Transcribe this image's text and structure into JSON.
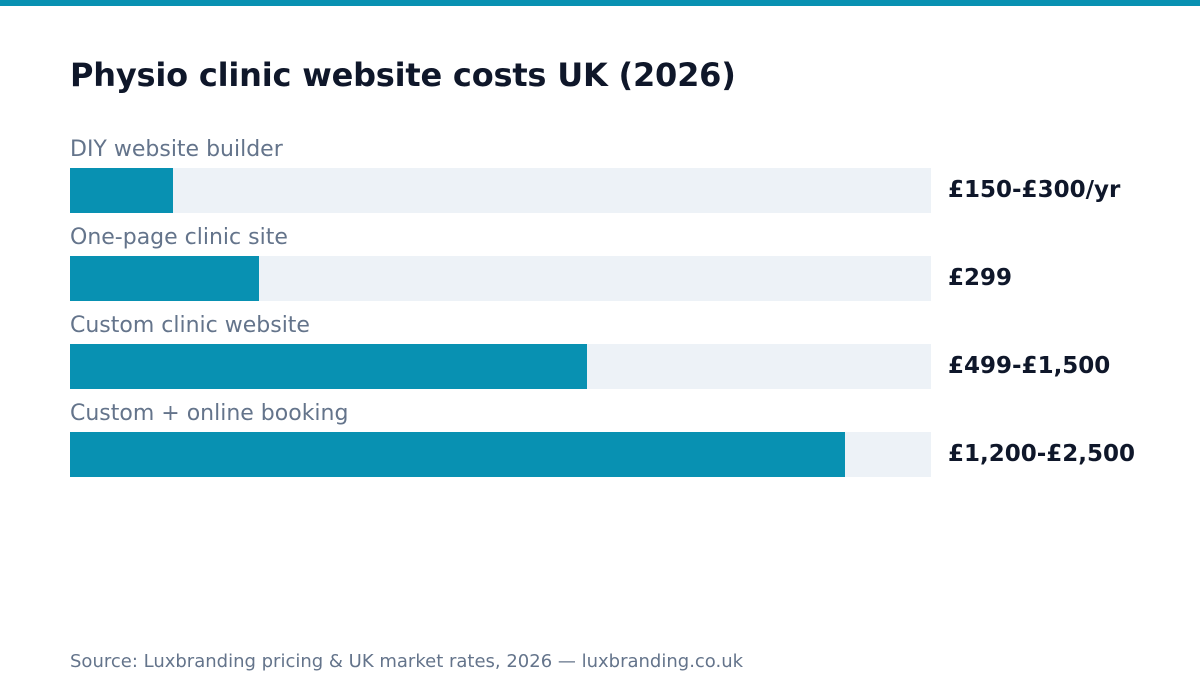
{
  "colors": {
    "accent": "#0891b2",
    "track": "#edf2f7",
    "title": "#0f172a",
    "label": "#64748b"
  },
  "chart_data": {
    "type": "bar",
    "orientation": "horizontal",
    "title": "Physio clinic website costs UK (2026)",
    "categories": [
      "DIY website builder",
      "One-page clinic site",
      "Custom clinic website",
      "Custom + online booking"
    ],
    "value_labels": [
      "£150-£300/yr",
      "£299",
      "£499-£1,500",
      "£1,200-£2,500"
    ],
    "bar_fill_fraction": [
      0.12,
      0.22,
      0.6,
      0.9
    ],
    "grid": false,
    "legend": "none"
  },
  "source": "Source: Luxbranding pricing & UK market rates, 2026 — luxbranding.co.uk"
}
